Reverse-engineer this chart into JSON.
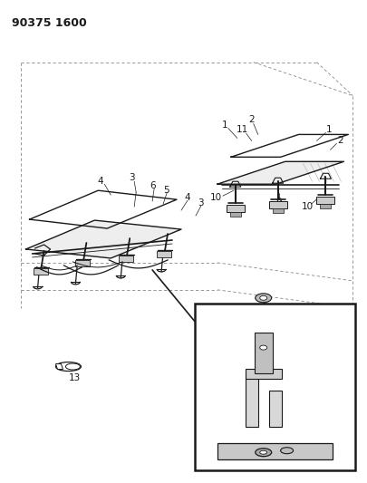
{
  "title_code": "90375 1600",
  "background_color": "#ffffff",
  "line_color": "#1a1a1a",
  "fig_width": 4.06,
  "fig_height": 5.33,
  "dpi": 100,
  "title_fontsize": 9,
  "label_fontsize": 7.5
}
